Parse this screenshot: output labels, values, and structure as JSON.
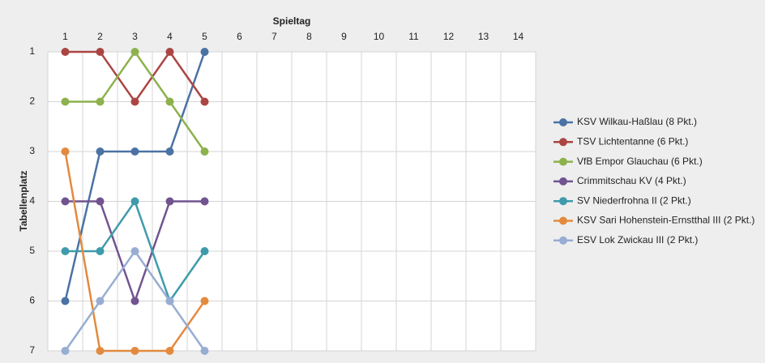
{
  "chart_data": {
    "type": "line",
    "x_label": "Spieltag",
    "y_label": "Tabellenplatz",
    "categories": [
      1,
      2,
      3,
      4,
      5,
      6,
      7,
      8,
      9,
      10,
      11,
      12,
      13,
      14
    ],
    "ylim": [
      1,
      7
    ],
    "yticks": [
      1,
      2,
      3,
      4,
      5,
      6,
      7
    ],
    "y_inverted": true,
    "grid": true,
    "legend": "right",
    "series": [
      {
        "name": "KSV Wilkau-Haßlau (8 Pkt.)",
        "color": "#4a72a4",
        "values": [
          6,
          3,
          3,
          3,
          1,
          null,
          null,
          null,
          null,
          null,
          null,
          null,
          null,
          null
        ]
      },
      {
        "name": "TSV Lichtentanne (6 Pkt.)",
        "color": "#ab4542",
        "values": [
          1,
          1,
          2,
          1,
          2,
          null,
          null,
          null,
          null,
          null,
          null,
          null,
          null,
          null
        ]
      },
      {
        "name": "VfB Empor Glauchau (6 Pkt.)",
        "color": "#8db14d",
        "values": [
          2,
          2,
          1,
          2,
          3,
          null,
          null,
          null,
          null,
          null,
          null,
          null,
          null,
          null
        ]
      },
      {
        "name": "Crimmitschau KV (4 Pkt.)",
        "color": "#71548f",
        "values": [
          4,
          4,
          6,
          4,
          4,
          null,
          null,
          null,
          null,
          null,
          null,
          null,
          null,
          null
        ]
      },
      {
        "name": "SV Niederfrohna II (2 Pkt.)",
        "color": "#3f9bab",
        "values": [
          5,
          5,
          4,
          6,
          5,
          null,
          null,
          null,
          null,
          null,
          null,
          null,
          null,
          null
        ]
      },
      {
        "name": "KSV Sari Hohenstein-Ernstthal III (2 Pkt.)",
        "color": "#e38a3f",
        "values": [
          3,
          7,
          7,
          7,
          6,
          null,
          null,
          null,
          null,
          null,
          null,
          null,
          null,
          null
        ]
      },
      {
        "name": "ESV Lok Zwickau III (2 Pkt.)",
        "color": "#97add2",
        "values": [
          7,
          6,
          5,
          6,
          7,
          null,
          null,
          null,
          null,
          null,
          null,
          null,
          null,
          null
        ]
      }
    ]
  }
}
